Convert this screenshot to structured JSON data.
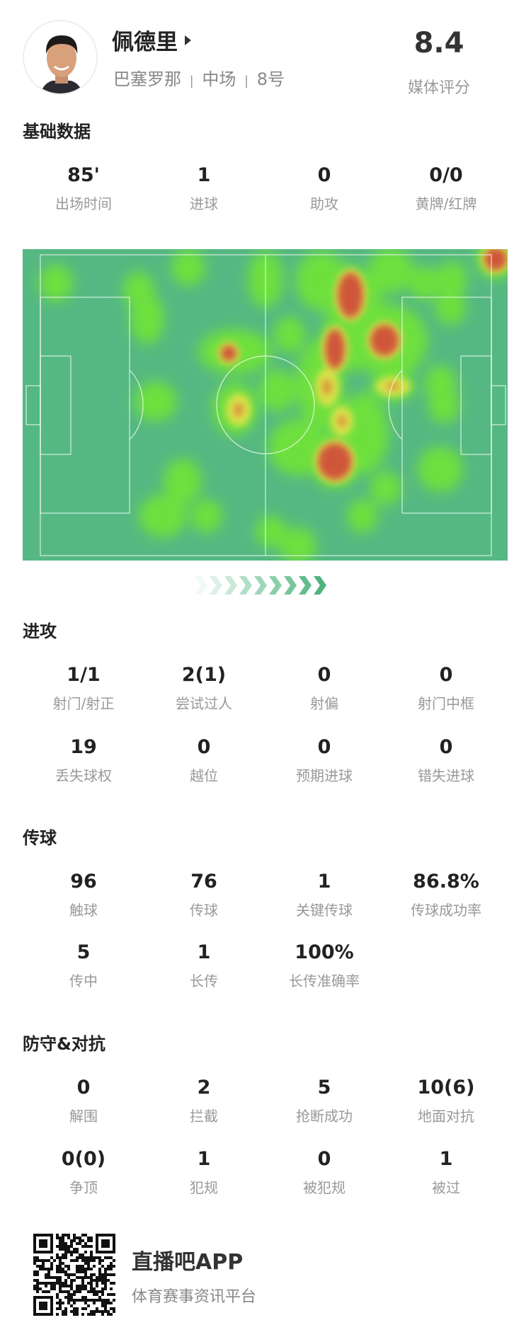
{
  "player": {
    "name": "佩德里",
    "team": "巴塞罗那",
    "position": "中场",
    "number": "8号",
    "separator": "|"
  },
  "rating": {
    "value": "8.4",
    "label": "媒体评分"
  },
  "sections": [
    {
      "title": "基础数据",
      "rows": [
        [
          {
            "v": "85'",
            "l": "出场时间"
          },
          {
            "v": "1",
            "l": "进球"
          },
          {
            "v": "0",
            "l": "助攻"
          },
          {
            "v": "0/0",
            "l": "黄牌/红牌"
          }
        ]
      ]
    },
    {
      "title": "进攻",
      "rows": [
        [
          {
            "v": "1/1",
            "l": "射门/射正"
          },
          {
            "v": "2(1)",
            "l": "尝试过人"
          },
          {
            "v": "0",
            "l": "射偏"
          },
          {
            "v": "0",
            "l": "射门中框"
          }
        ],
        [
          {
            "v": "19",
            "l": "丢失球权"
          },
          {
            "v": "0",
            "l": "越位"
          },
          {
            "v": "0",
            "l": "预期进球"
          },
          {
            "v": "0",
            "l": "错失进球"
          }
        ]
      ]
    },
    {
      "title": "传球",
      "rows": [
        [
          {
            "v": "96",
            "l": "触球"
          },
          {
            "v": "76",
            "l": "传球"
          },
          {
            "v": "1",
            "l": "关键传球"
          },
          {
            "v": "86.8%",
            "l": "传球成功率"
          }
        ],
        [
          {
            "v": "5",
            "l": "传中"
          },
          {
            "v": "1",
            "l": "长传"
          },
          {
            "v": "100%",
            "l": "长传准确率"
          }
        ]
      ]
    },
    {
      "title": "防守&对抗",
      "rows": [
        [
          {
            "v": "0",
            "l": "解围"
          },
          {
            "v": "2",
            "l": "拦截"
          },
          {
            "v": "5",
            "l": "抢断成功"
          },
          {
            "v": "10(6)",
            "l": "地面对抗"
          }
        ],
        [
          {
            "v": "0(0)",
            "l": "争顶"
          },
          {
            "v": "1",
            "l": "犯规"
          },
          {
            "v": "0",
            "l": "被犯规"
          },
          {
            "v": "1",
            "l": "被过"
          }
        ]
      ]
    }
  ],
  "heatmap": {
    "pitch_color": "#55b882",
    "hot_color": "#d0573a",
    "warm_color": "#d9e24a",
    "cool_color": "#6ee03c",
    "attack_direction": "right"
  },
  "footer": {
    "app_name": "直播吧APP",
    "slogan": "体育赛事资讯平台"
  }
}
